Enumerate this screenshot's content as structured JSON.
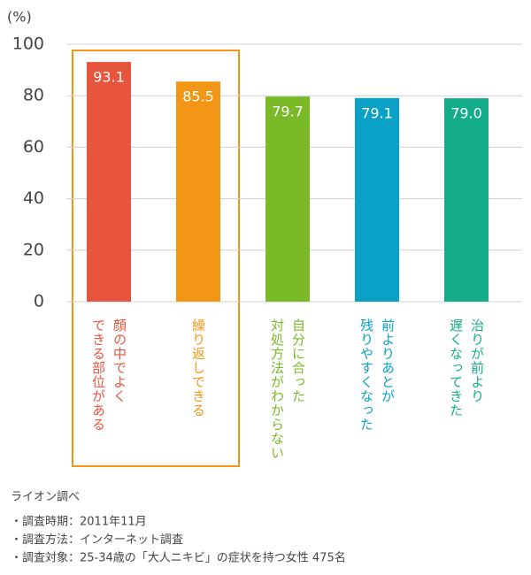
{
  "chart_data": {
    "type": "bar",
    "y_unit": "(%)",
    "categories": [
      [
        "顔の中でよく",
        "できる部位がある"
      ],
      [
        "繰り返しできる"
      ],
      [
        "自分に合った",
        "対処方法がわからない"
      ],
      [
        "前よりあとが",
        "残りやすくなった"
      ],
      [
        "治りが前より",
        "遅くなってきた"
      ]
    ],
    "values": [
      93.1,
      85.5,
      79.7,
      79.1,
      79.0
    ],
    "value_labels": [
      "93.1",
      "85.5",
      "79.7",
      "79.1",
      "79.0"
    ],
    "colors": [
      "#e8553e",
      "#f39615",
      "#7ab928",
      "#0aa1c6",
      "#13ad8c"
    ],
    "ylim": [
      0,
      100
    ],
    "yticks": [
      0,
      20,
      40,
      60,
      80,
      100
    ],
    "grid": true,
    "source": "ライオン調べ",
    "notes": [
      "・調査時期：2011年11月",
      "・調査方法：インターネット調査",
      "・調査対象：25-34歳の「大人ニキビ」の症状を持つ女性 475名"
    ]
  }
}
